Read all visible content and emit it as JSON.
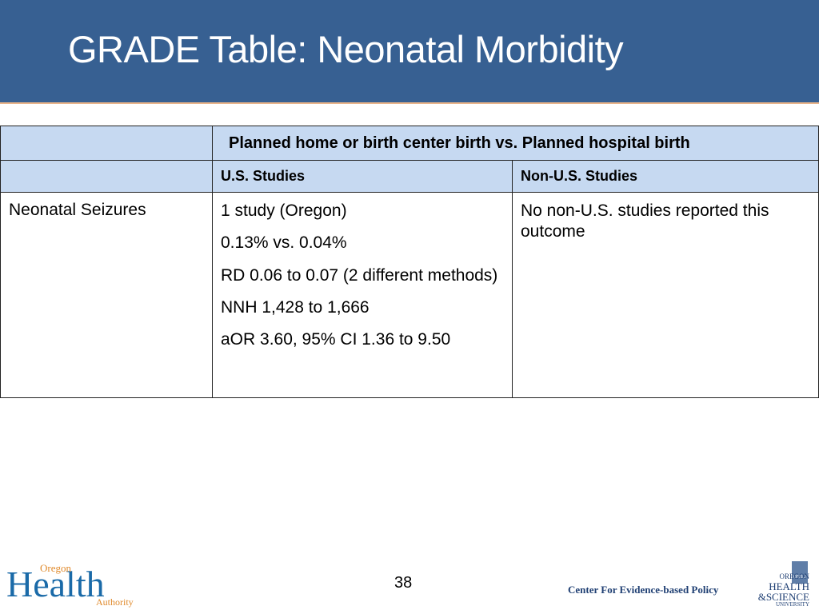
{
  "header": {
    "title": "GRADE Table: Neonatal Morbidity"
  },
  "table": {
    "comparison": "Planned home or birth center birth vs. Planned hospital birth",
    "columns": [
      "U.S. Studies",
      "Non-U.S. Studies"
    ],
    "rows": [
      {
        "outcome": "Neonatal Seizures",
        "us": [
          "1 study (Oregon)",
          "0.13% vs. 0.04%",
          "RD 0.06 to 0.07 (2 different methods)",
          "NNH 1,428 to 1,666",
          "aOR 3.60, 95% CI 1.36 to 9.50"
        ],
        "non_us": [
          "No non-U.S. studies reported this outcome"
        ]
      }
    ]
  },
  "footer": {
    "page_number": "38",
    "center": "Center For Evidence-based Policy",
    "left_logo": {
      "top": "Oregon",
      "main": "Health",
      "bottom": "Authority"
    },
    "right_logo": {
      "badge": "OHSU",
      "lines": [
        "OREGON",
        "HEALTH",
        "&SCIENCE",
        "UNIVERSITY"
      ]
    }
  }
}
